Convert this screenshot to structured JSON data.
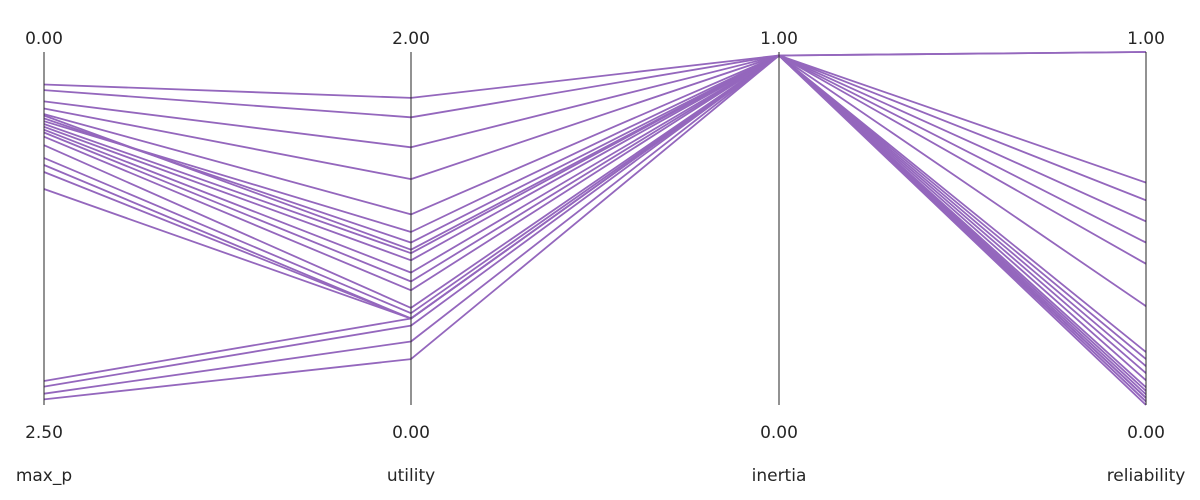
{
  "chart_data": {
    "type": "parallel_coordinates",
    "title": "",
    "line_color": "#9467bd",
    "axes": [
      {
        "name": "max_p",
        "top_label": "0.00",
        "bottom_label": "2.50",
        "top_value": 0.0,
        "bottom_value": 2.5
      },
      {
        "name": "utility",
        "top_label": "2.00",
        "bottom_label": "0.00",
        "top_value": 2.0,
        "bottom_value": 0.0
      },
      {
        "name": "inertia",
        "top_label": "1.00",
        "bottom_label": "0.00",
        "top_value": 1.0,
        "bottom_value": 0.0
      },
      {
        "name": "reliability",
        "top_label": "1.00",
        "bottom_label": "0.00",
        "top_value": 1.0,
        "bottom_value": 0.0
      }
    ],
    "lines": [
      [
        0.23,
        1.74,
        0.99,
        1.0
      ],
      [
        0.27,
        1.63,
        0.99,
        1.0
      ],
      [
        0.35,
        1.46,
        0.99,
        0.63
      ],
      [
        0.4,
        1.28,
        0.99,
        0.58
      ],
      [
        0.44,
        1.08,
        0.99,
        0.52
      ],
      [
        0.45,
        0.88,
        0.99,
        0.46
      ],
      [
        0.47,
        0.92,
        0.99,
        0.4
      ],
      [
        0.49,
        0.98,
        0.99,
        0.28
      ],
      [
        0.51,
        0.86,
        0.99,
        0.15
      ],
      [
        0.53,
        0.82,
        0.99,
        0.13
      ],
      [
        0.55,
        0.75,
        0.99,
        0.11
      ],
      [
        0.57,
        0.7,
        0.99,
        0.09
      ],
      [
        0.6,
        0.65,
        0.99,
        0.07
      ],
      [
        0.66,
        0.55,
        0.99,
        0.05
      ],
      [
        0.75,
        0.52,
        0.99,
        0.04
      ],
      [
        0.8,
        0.49,
        0.99,
        0.02
      ],
      [
        0.85,
        0.49,
        0.99,
        0.01
      ],
      [
        0.97,
        0.49,
        0.99,
        0.02
      ],
      [
        2.33,
        0.49,
        0.99,
        0.03
      ],
      [
        2.37,
        0.45,
        0.99,
        0.01
      ],
      [
        2.42,
        0.36,
        0.99,
        0.02
      ],
      [
        2.46,
        0.26,
        0.99,
        0.0
      ]
    ]
  }
}
